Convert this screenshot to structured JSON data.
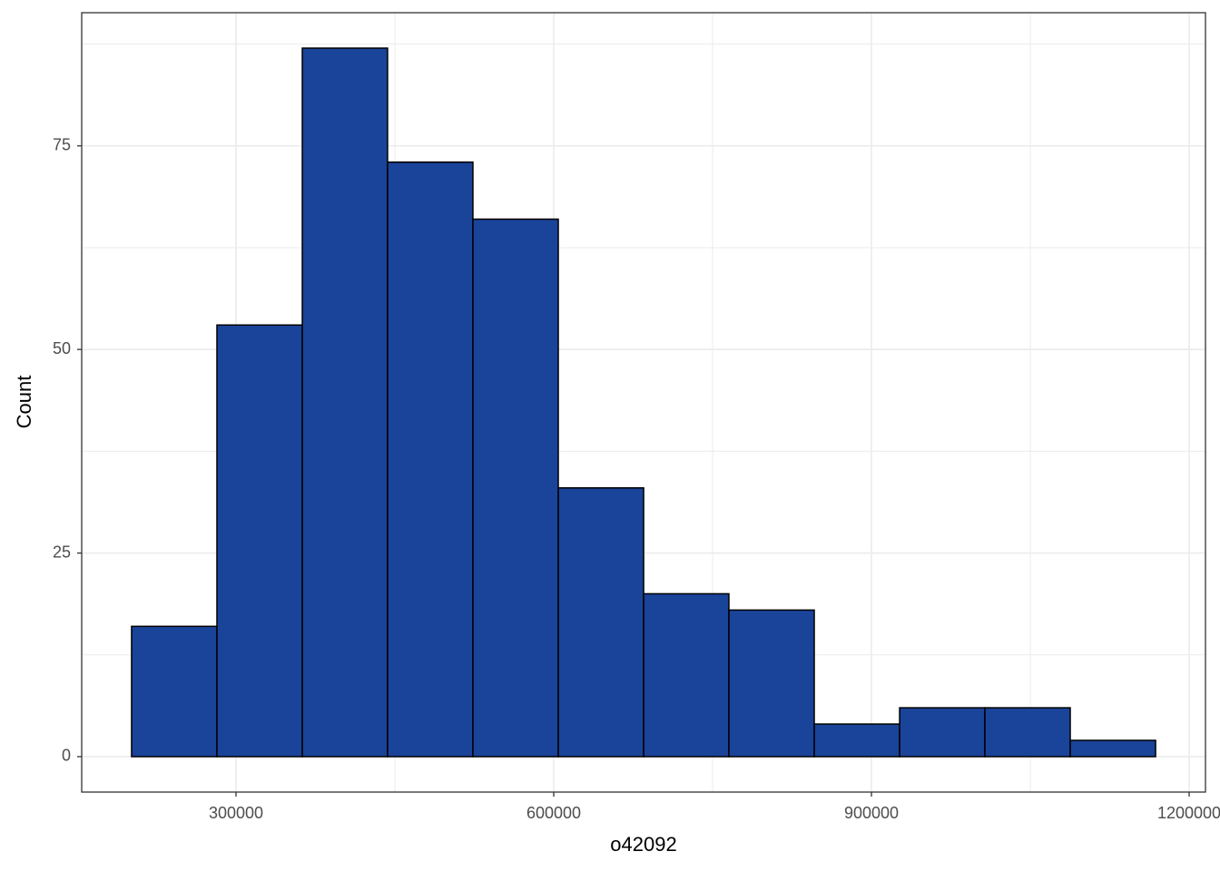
{
  "chart_data": {
    "type": "histogram",
    "x_label": "o42092",
    "y_label": "Count",
    "bins": [
      201400,
      282000,
      362600,
      443100,
      523700,
      604300,
      684900,
      765400,
      846000,
      926600,
      1007100,
      1087700,
      1168300
    ],
    "values": [
      16,
      53,
      87,
      73,
      66,
      33,
      20,
      18,
      4,
      6,
      6,
      2
    ],
    "color": "#1a4499",
    "edge_color": "#000000",
    "xlim": [
      154300,
      1215400
    ],
    "ylim": [
      -4.35,
      91.35
    ],
    "xticks": [
      300000,
      600000,
      900000,
      1200000
    ],
    "yticks": [
      0,
      25,
      50,
      75
    ],
    "grid": true
  }
}
